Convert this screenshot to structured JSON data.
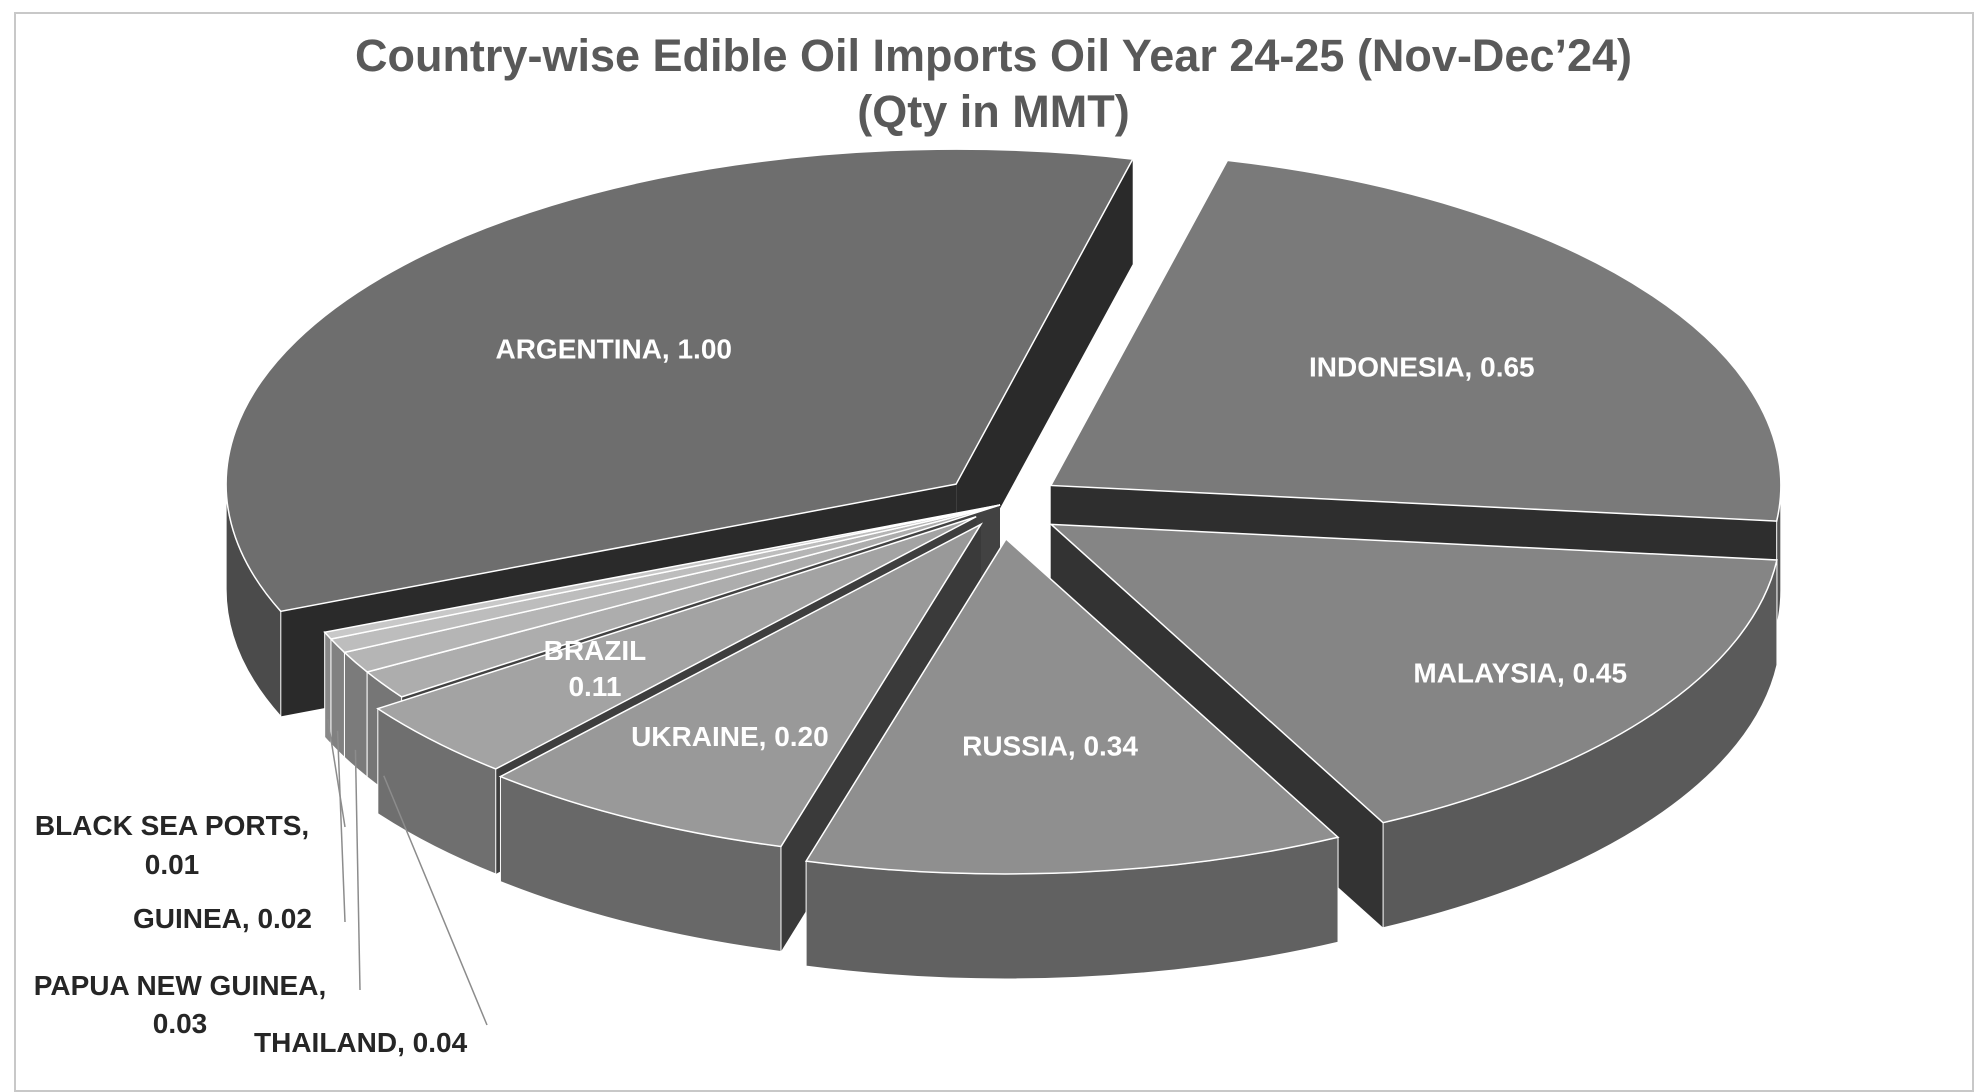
{
  "chart_data": {
    "type": "pie",
    "style": "3d-exploded",
    "title": "Country-wise Edible Oil Imports Oil Year 24-25 (Nov-Dec’24)",
    "subtitle": "(Qty in MMT)",
    "slices": [
      {
        "name": "INDONESIA",
        "value": 0.65,
        "label": "INDONESIA, 0.65",
        "color": "#7a7a7a"
      },
      {
        "name": "MALAYSIA",
        "value": 0.45,
        "label": "MALAYSIA, 0.45",
        "color": "#858585"
      },
      {
        "name": "RUSSIA",
        "value": 0.34,
        "label": "RUSSIA, 0.34",
        "color": "#8f8f8f"
      },
      {
        "name": "UKRAINE",
        "value": 0.2,
        "label": "UKRAINE, 0.20",
        "color": "#999999"
      },
      {
        "name": "BRAZIL",
        "value": 0.11,
        "label_line1": "BRAZIL",
        "label_line2": "0.11",
        "color": "#a3a3a3"
      },
      {
        "name": "THAILAND",
        "value": 0.04,
        "label": "THAILAND, 0.04",
        "color": "#adadad"
      },
      {
        "name": "PAPUA NEW GUINEA",
        "value": 0.03,
        "label_line1": "PAPUA NEW GUINEA,",
        "label_line2": "0.03",
        "color": "#b5b5b5"
      },
      {
        "name": "GUINEA",
        "value": 0.02,
        "label": "GUINEA, 0.02",
        "color": "#bdbdbd"
      },
      {
        "name": "BLACK SEA PORTS",
        "value": 0.01,
        "label_line1": "BLACK SEA PORTS,",
        "label_line2": "0.01",
        "color": "#c8c8c8"
      },
      {
        "name": "ARGENTINA",
        "value": 1.0,
        "label": "ARGENTINA, 1.00",
        "color": "#6e6e6e"
      }
    ]
  }
}
